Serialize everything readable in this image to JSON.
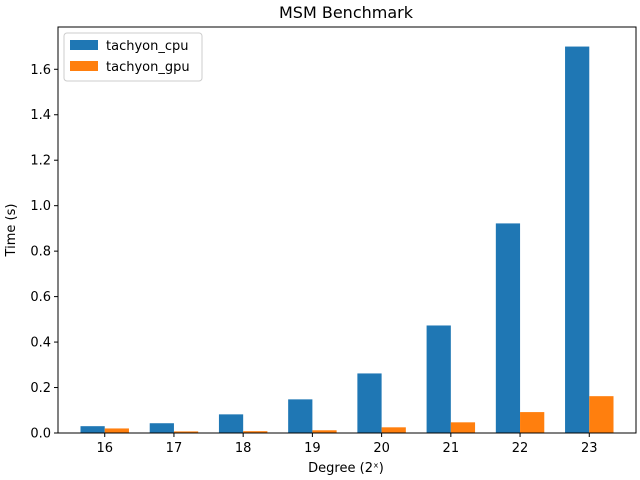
{
  "chart_data": {
    "type": "bar",
    "title": "MSM Benchmark",
    "xlabel": "Degree (2ˣ)",
    "ylabel": "Time (s)",
    "categories": [
      "16",
      "17",
      "18",
      "19",
      "20",
      "21",
      "22",
      "23"
    ],
    "series": [
      {
        "name": "tachyon_cpu",
        "color": "#1f77b4",
        "values": [
          0.03,
          0.043,
          0.082,
          0.148,
          0.262,
          0.473,
          0.922,
          1.7
        ]
      },
      {
        "name": "tachyon_gpu",
        "color": "#ff7f0e",
        "values": [
          0.02,
          0.007,
          0.008,
          0.012,
          0.025,
          0.047,
          0.092,
          0.162
        ]
      }
    ],
    "ylim": [
      0,
      1.786
    ],
    "yticks": [
      "0.0",
      "0.2",
      "0.4",
      "0.6",
      "0.8",
      "1.0",
      "1.2",
      "1.4",
      "1.6"
    ],
    "legend_position": "top-left",
    "grid": false
  }
}
